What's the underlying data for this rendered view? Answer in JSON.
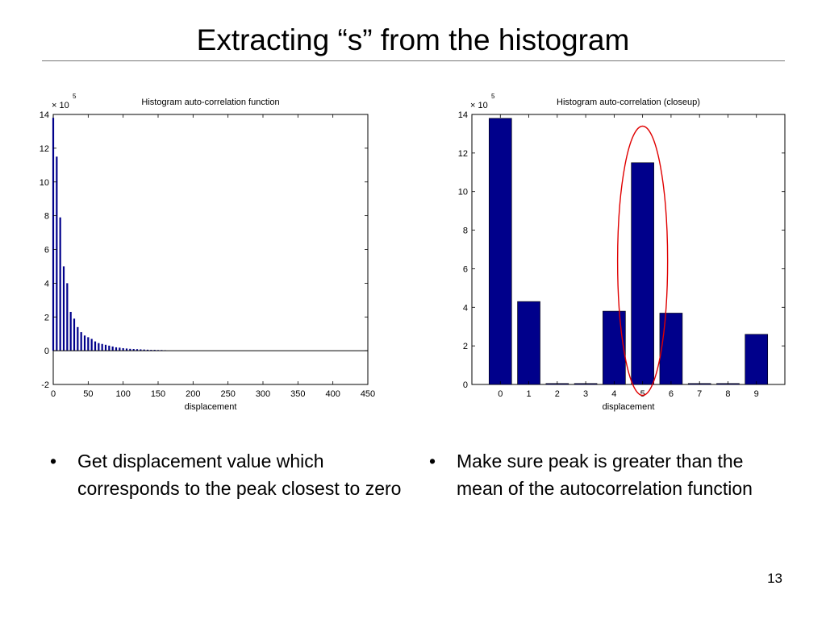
{
  "slide": {
    "title": "Extracting “s” from the histogram",
    "page_number": "13",
    "bullets_left": [
      "Get displacement value which corresponds to the peak closest to zero"
    ],
    "bullets_right": [
      "Make sure peak is greater than the mean of the autocorrelation function"
    ],
    "bullet_glyph": "•"
  },
  "chart_data": [
    {
      "type": "bar",
      "title": "Histogram auto-correlation function",
      "xlabel": "displacement",
      "ylabel": "",
      "exponent_label": "× 10",
      "exponent": "5",
      "xlim": [
        0,
        450
      ],
      "ylim": [
        -2,
        14
      ],
      "xticks": [
        0,
        50,
        100,
        150,
        200,
        250,
        300,
        350,
        400,
        450
      ],
      "yticks": [
        -2,
        0,
        2,
        4,
        6,
        8,
        10,
        12,
        14
      ],
      "bar_color": "#00008b",
      "x": [
        0,
        5,
        10,
        15,
        20,
        25,
        30,
        35,
        40,
        45,
        50,
        55,
        60,
        65,
        70,
        75,
        80,
        85,
        90,
        95,
        100,
        105,
        110,
        115,
        120,
        125,
        130,
        135,
        140,
        145,
        150,
        155,
        160
      ],
      "values": [
        13.8,
        11.5,
        7.9,
        5.0,
        4.0,
        2.3,
        1.9,
        1.4,
        1.1,
        0.9,
        0.8,
        0.7,
        0.55,
        0.45,
        0.4,
        0.35,
        0.3,
        0.25,
        0.2,
        0.18,
        0.15,
        0.13,
        0.11,
        0.1,
        0.09,
        0.08,
        0.07,
        0.06,
        0.05,
        0.05,
        0.04,
        0.04,
        0.03
      ]
    },
    {
      "type": "bar",
      "title": "Histogram auto-correlation (closeup)",
      "xlabel": "displacement",
      "ylabel": "",
      "exponent_label": "× 10",
      "exponent": "5",
      "xlim": [
        -1,
        10
      ],
      "ylim": [
        0,
        14
      ],
      "xticks": [
        0,
        1,
        2,
        3,
        4,
        5,
        6,
        7,
        8,
        9
      ],
      "yticks": [
        0,
        2,
        4,
        6,
        8,
        10,
        12,
        14
      ],
      "bar_color": "#00008b",
      "categories": [
        0,
        1,
        2,
        3,
        4,
        5,
        6,
        7,
        8,
        9
      ],
      "values": [
        13.8,
        4.3,
        0.05,
        0.05,
        3.8,
        11.5,
        3.7,
        0.05,
        0.05,
        2.6
      ],
      "annotation": {
        "type": "ellipse",
        "color": "#e00000",
        "around": 5
      }
    }
  ]
}
